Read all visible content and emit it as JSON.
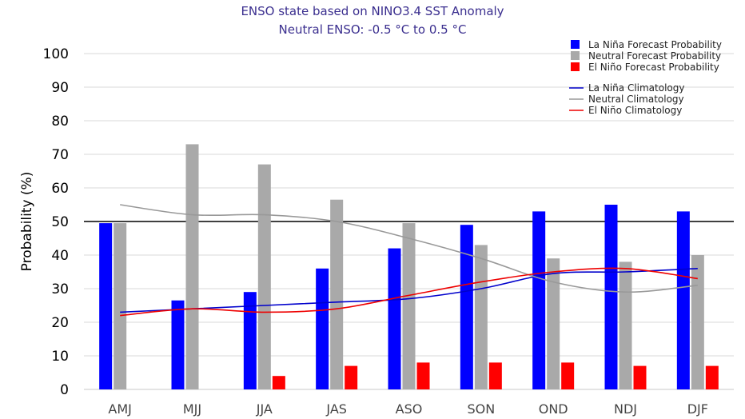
{
  "chart_data": {
    "type": "bar",
    "title": "ENSO state based on NINO3.4 SST Anomaly",
    "subtitle": "Neutral ENSO: -0.5 °C to 0.5 °C",
    "xlabel": "",
    "ylabel": "Probability (%)",
    "ylim": [
      0,
      100
    ],
    "yticks": [
      0,
      10,
      20,
      30,
      40,
      50,
      60,
      70,
      80,
      90,
      100
    ],
    "reference_line": 50,
    "grid": true,
    "legend_position": "top-right",
    "categories": [
      "AMJ",
      "MJJ",
      "JJA",
      "JAS",
      "ASO",
      "SON",
      "OND",
      "NDJ",
      "DJF"
    ],
    "series": [
      {
        "name": "La Niña Forecast Probability",
        "kind": "bar",
        "color": "#0000ff",
        "values": [
          49.5,
          26.5,
          29,
          36,
          42,
          49,
          53,
          55,
          53
        ]
      },
      {
        "name": "Neutral Forecast Probability",
        "kind": "bar",
        "color": "#a9a9a9",
        "values": [
          49.5,
          73,
          67,
          56.5,
          49.5,
          43,
          39,
          38,
          40
        ]
      },
      {
        "name": "El Niño Forecast Probability",
        "kind": "bar",
        "color": "#ff0000",
        "values": [
          0,
          0,
          4,
          7,
          8,
          8,
          8,
          7,
          7
        ]
      },
      {
        "name": "La Niña Climatology",
        "kind": "line",
        "color": "#0000cc",
        "values": [
          23,
          24,
          25,
          26,
          27,
          30,
          34.5,
          35,
          36
        ]
      },
      {
        "name": "Neutral Climatology",
        "kind": "line",
        "color": "#999999",
        "values": [
          55,
          52,
          52,
          50,
          45,
          39,
          32,
          29,
          31
        ]
      },
      {
        "name": "El Niño Climatology",
        "kind": "line",
        "color": "#ee0000",
        "values": [
          22,
          24,
          23,
          24,
          28,
          32,
          35,
          36,
          33
        ]
      }
    ]
  }
}
